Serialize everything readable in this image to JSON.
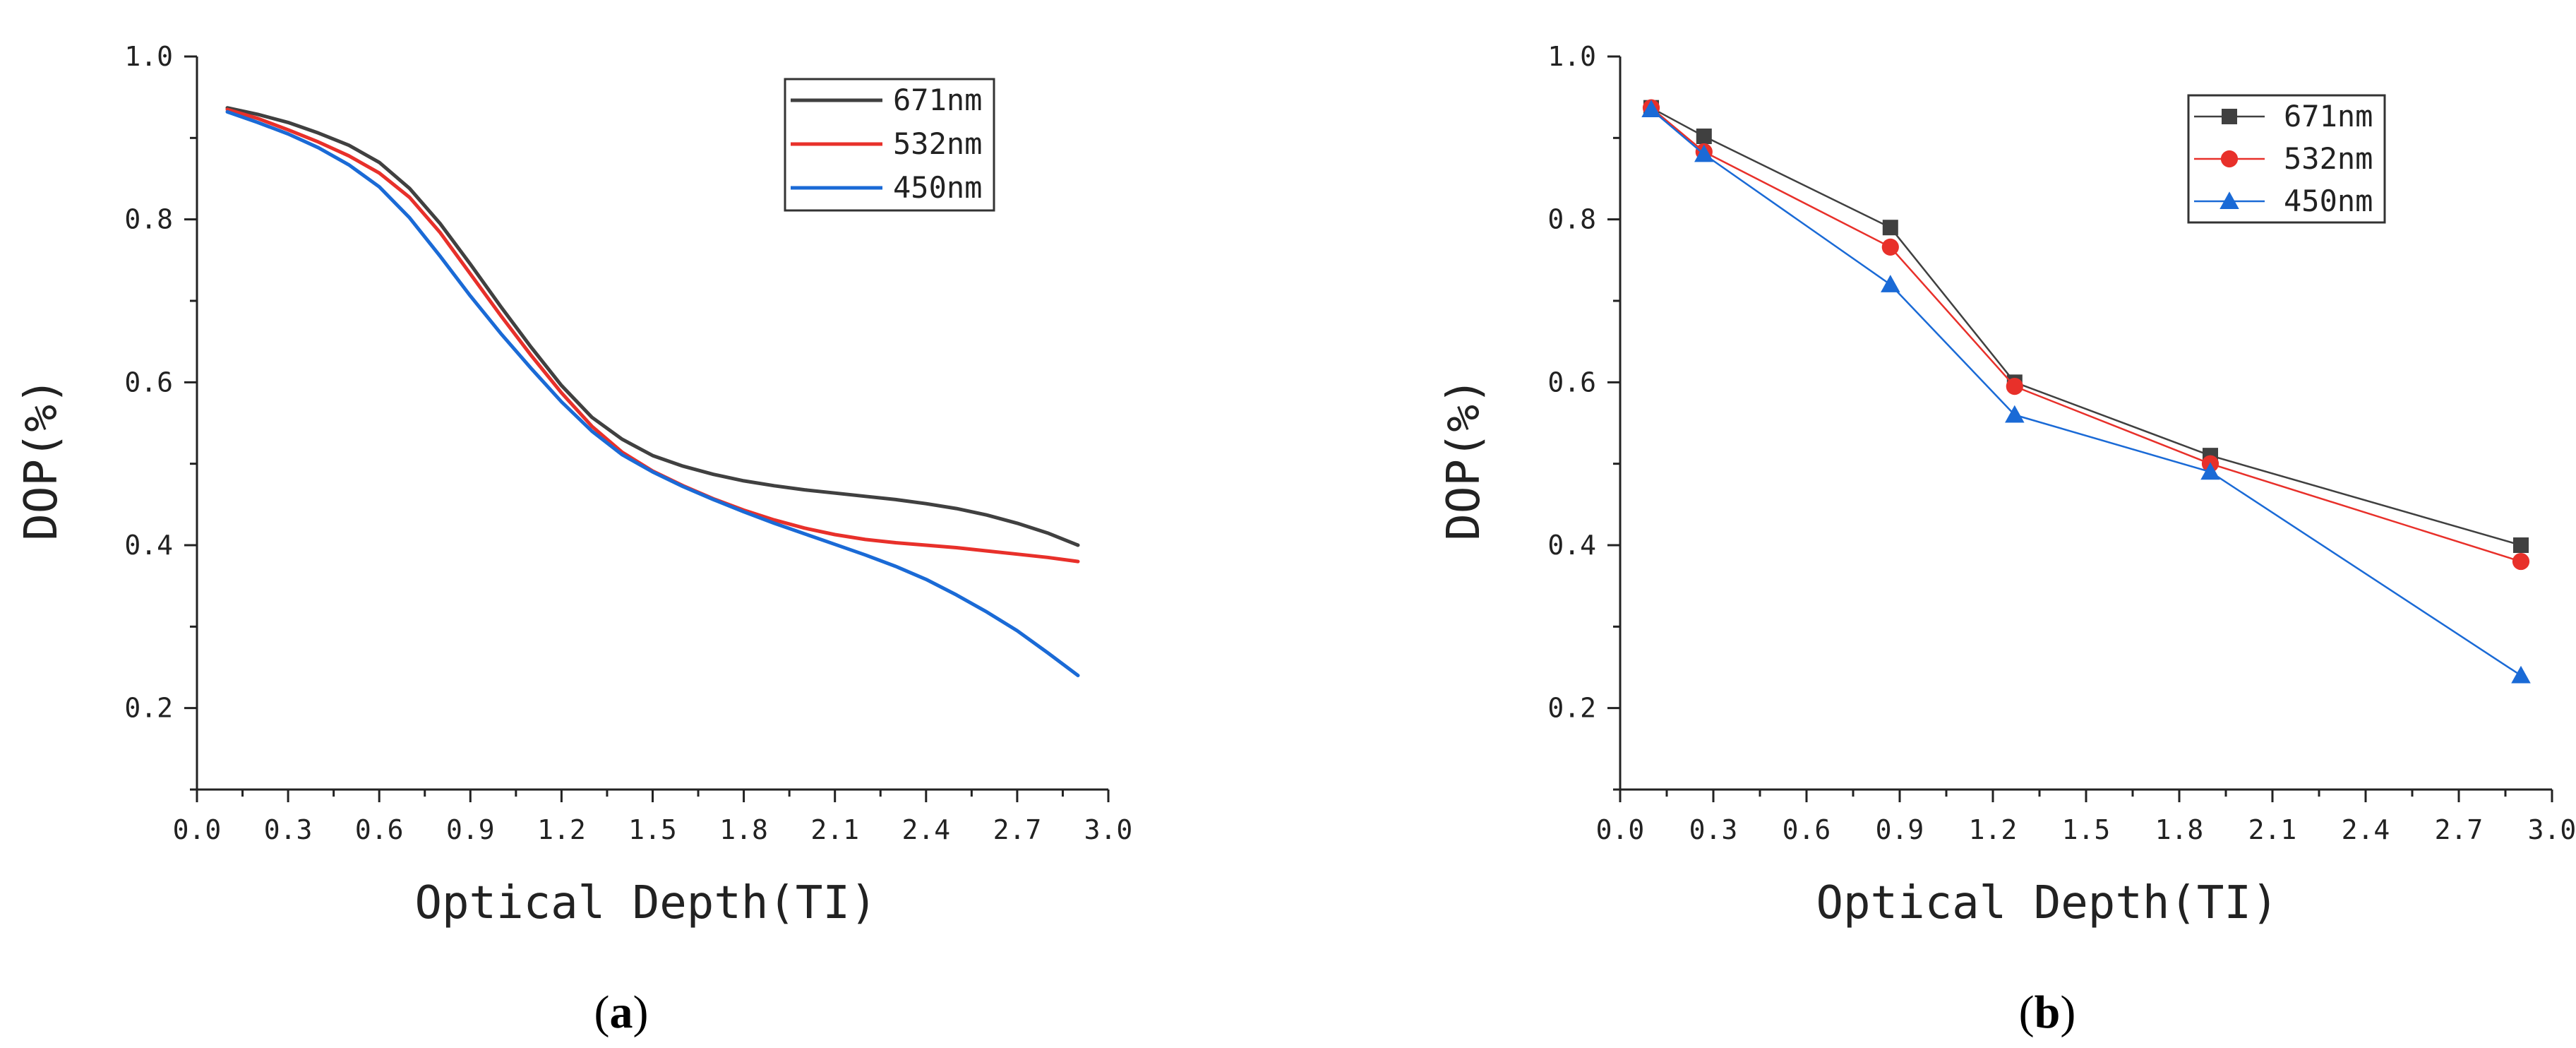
{
  "chart_data": [
    {
      "type": "line",
      "panel_label": {
        "open": "(",
        "letter": "a",
        "close": ")"
      },
      "xlabel": "Optical Depth(TI)",
      "ylabel": "DOP(%)",
      "xlim": [
        0.0,
        3.0
      ],
      "ylim": [
        0.1,
        1.0
      ],
      "xticks": [
        "0.0",
        "0.3",
        "0.6",
        "0.9",
        "1.2",
        "1.5",
        "1.8",
        "2.1",
        "2.4",
        "2.7",
        "3.0"
      ],
      "yticks": [
        "0.2",
        "0.4",
        "0.6",
        "0.8",
        "1.0"
      ],
      "legend_position": "top-right",
      "series": [
        {
          "name": "671nm",
          "color": "#404040",
          "x": [
            0.1,
            0.2,
            0.3,
            0.4,
            0.5,
            0.6,
            0.7,
            0.8,
            0.9,
            1.0,
            1.1,
            1.2,
            1.3,
            1.4,
            1.5,
            1.6,
            1.7,
            1.8,
            1.9,
            2.0,
            2.1,
            2.2,
            2.3,
            2.4,
            2.5,
            2.6,
            2.7,
            2.8,
            2.9
          ],
          "values": [
            0.937,
            0.929,
            0.919,
            0.906,
            0.891,
            0.87,
            0.838,
            0.795,
            0.745,
            0.693,
            0.643,
            0.596,
            0.557,
            0.53,
            0.51,
            0.497,
            0.487,
            0.479,
            0.473,
            0.468,
            0.464,
            0.46,
            0.456,
            0.451,
            0.445,
            0.437,
            0.427,
            0.415,
            0.4
          ]
        },
        {
          "name": "532nm",
          "color": "#e8302a",
          "x": [
            0.1,
            0.2,
            0.3,
            0.4,
            0.5,
            0.6,
            0.7,
            0.8,
            0.9,
            1.0,
            1.1,
            1.2,
            1.3,
            1.4,
            1.5,
            1.6,
            1.7,
            1.8,
            1.9,
            2.0,
            2.1,
            2.2,
            2.3,
            2.4,
            2.5,
            2.6,
            2.7,
            2.8,
            2.9
          ],
          "values": [
            0.935,
            0.924,
            0.91,
            0.895,
            0.878,
            0.857,
            0.827,
            0.784,
            0.733,
            0.682,
            0.633,
            0.587,
            0.546,
            0.514,
            0.491,
            0.473,
            0.457,
            0.443,
            0.431,
            0.421,
            0.413,
            0.407,
            0.403,
            0.4,
            0.397,
            0.393,
            0.389,
            0.385,
            0.38
          ]
        },
        {
          "name": "450nm",
          "color": "#1a6ad6",
          "x": [
            0.1,
            0.2,
            0.3,
            0.4,
            0.5,
            0.6,
            0.7,
            0.8,
            0.9,
            1.0,
            1.1,
            1.2,
            1.3,
            1.4,
            1.5,
            1.6,
            1.7,
            1.8,
            1.9,
            2.0,
            2.1,
            2.2,
            2.3,
            2.4,
            2.5,
            2.6,
            2.7,
            2.8,
            2.9
          ],
          "values": [
            0.932,
            0.919,
            0.905,
            0.888,
            0.867,
            0.84,
            0.802,
            0.755,
            0.706,
            0.66,
            0.617,
            0.576,
            0.54,
            0.511,
            0.49,
            0.472,
            0.456,
            0.441,
            0.427,
            0.414,
            0.401,
            0.388,
            0.374,
            0.358,
            0.339,
            0.318,
            0.295,
            0.268,
            0.24
          ]
        }
      ]
    },
    {
      "type": "line",
      "panel_label": {
        "open": "(",
        "letter": "b",
        "close": ")"
      },
      "xlabel": "Optical Depth(TI)",
      "ylabel": "DOP(%)",
      "xlim": [
        0.0,
        3.0
      ],
      "ylim": [
        0.1,
        1.0
      ],
      "xticks": [
        "0.0",
        "0.3",
        "0.6",
        "0.9",
        "1.2",
        "1.5",
        "1.8",
        "2.1",
        "2.4",
        "2.7",
        "3.0"
      ],
      "yticks": [
        "0.2",
        "0.4",
        "0.6",
        "0.8",
        "1.0"
      ],
      "legend_position": "top-right",
      "series": [
        {
          "name": "671nm",
          "color": "#404040",
          "marker": "square",
          "x": [
            0.1,
            0.27,
            0.87,
            1.27,
            1.9,
            2.9
          ],
          "values": [
            0.937,
            0.902,
            0.79,
            0.6,
            0.51,
            0.4
          ]
        },
        {
          "name": "532nm",
          "color": "#e8302a",
          "marker": "circle",
          "x": [
            0.1,
            0.27,
            0.87,
            1.27,
            1.9,
            2.9
          ],
          "values": [
            0.937,
            0.883,
            0.766,
            0.595,
            0.5,
            0.38
          ]
        },
        {
          "name": "450nm",
          "color": "#1a6ad6",
          "marker": "triangle",
          "x": [
            0.1,
            0.27,
            0.87,
            1.27,
            1.9,
            2.9
          ],
          "values": [
            0.935,
            0.88,
            0.72,
            0.56,
            0.49,
            0.24
          ]
        }
      ]
    }
  ]
}
